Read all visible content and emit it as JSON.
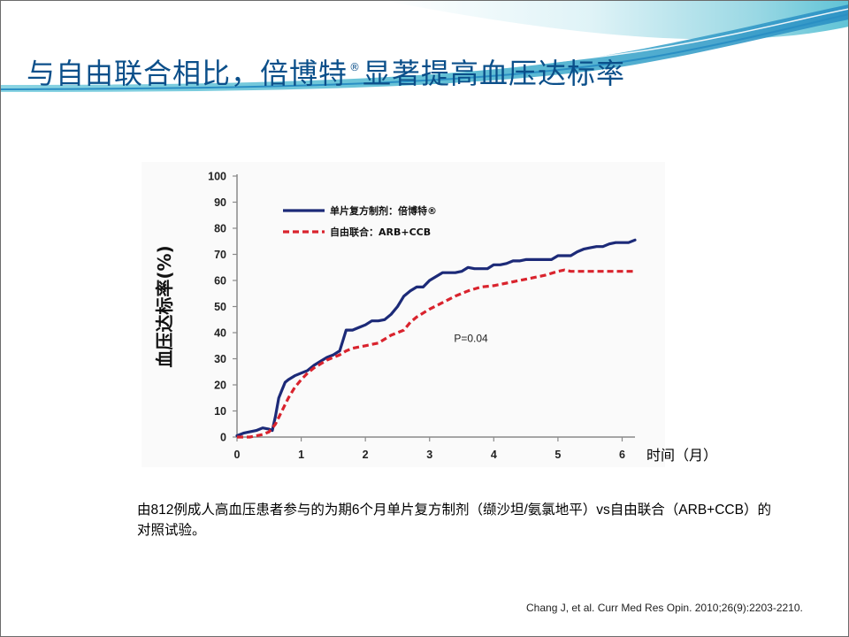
{
  "slide": {
    "title_main": "与自由联合相比，倍博特",
    "title_mark": "®",
    "title_tail": "显著提高血压达标率",
    "x_unit_label": "时间（月）",
    "caption": "由812例成人高血压患者参与的为期6个月单片复方制剂（缬沙坦/氨氯地平）vs自由联合（ARB+CCB）的对照试验。",
    "reference": "Chang J, et al. Curr Med Res Opin. 2010;26(9):2203-2210."
  },
  "colors": {
    "title": "#0b4f8a",
    "series_single_pill": "#1c2a78",
    "series_free_combo": "#d9232d",
    "header_teal": "#58c0d4",
    "header_blue": "#2a8fc4"
  },
  "chart_data": {
    "type": "line",
    "ylabel": "血压达标率(%)",
    "xlabel": "",
    "xlim": [
      0,
      6.2
    ],
    "ylim": [
      0,
      100
    ],
    "x_ticks": [
      "0",
      "1",
      "2",
      "3",
      "4",
      "5",
      "6"
    ],
    "y_ticks": [
      "0",
      "10",
      "20",
      "30",
      "40",
      "50",
      "60",
      "70",
      "80",
      "90",
      "100"
    ],
    "legend_position": "top-left",
    "grid": false,
    "annotation": "P=0.04",
    "series": [
      {
        "name": "单片复方制剂：倍博特®",
        "style": "solid",
        "x": [
          0,
          0.1,
          0.2,
          0.3,
          0.4,
          0.5,
          0.55,
          0.6,
          0.65,
          0.7,
          0.75,
          0.8,
          0.9,
          1.0,
          1.1,
          1.2,
          1.3,
          1.4,
          1.5,
          1.6,
          1.65,
          1.7,
          1.8,
          1.9,
          2.0,
          2.1,
          2.2,
          2.3,
          2.4,
          2.5,
          2.6,
          2.7,
          2.8,
          2.9,
          3.0,
          3.1,
          3.2,
          3.3,
          3.4,
          3.5,
          3.6,
          3.7,
          3.8,
          3.9,
          4.0,
          4.1,
          4.2,
          4.3,
          4.4,
          4.5,
          4.6,
          4.7,
          4.8,
          4.9,
          5.0,
          5.1,
          5.2,
          5.3,
          5.4,
          5.5,
          5.6,
          5.7,
          5.8,
          5.9,
          6.0,
          6.1,
          6.2
        ],
        "y": [
          0.5,
          1.5,
          2,
          2.5,
          3.5,
          3,
          2.5,
          8,
          15,
          18,
          21,
          22,
          23.5,
          24.5,
          25.5,
          27.5,
          29,
          30.5,
          31.5,
          33,
          37,
          41,
          41,
          42,
          43,
          44.5,
          44.5,
          45,
          47,
          50,
          54,
          56,
          57.5,
          57.5,
          60,
          61.5,
          63,
          63,
          63,
          63.5,
          65,
          64.5,
          64.5,
          64.5,
          66,
          66,
          66.5,
          67.5,
          67.5,
          68,
          68,
          68,
          68,
          68,
          69.5,
          69.5,
          69.5,
          71,
          72,
          72.5,
          73,
          73,
          74,
          74.5,
          74.5,
          74.5,
          75.5
        ]
      },
      {
        "name": "自由联合：ARB+CCB",
        "style": "dashed",
        "x": [
          0,
          0.2,
          0.4,
          0.5,
          0.6,
          0.7,
          0.8,
          0.9,
          1.0,
          1.1,
          1.2,
          1.3,
          1.4,
          1.5,
          1.6,
          1.7,
          1.8,
          1.9,
          2.0,
          2.1,
          2.2,
          2.3,
          2.4,
          2.5,
          2.6,
          2.7,
          2.8,
          3.0,
          3.2,
          3.4,
          3.6,
          3.8,
          4.0,
          4.2,
          4.4,
          4.6,
          4.8,
          5.0,
          5.1,
          5.2,
          5.4,
          5.6,
          5.8,
          6.0,
          6.2
        ],
        "y": [
          0,
          0,
          1,
          2,
          5,
          10,
          15,
          19,
          22,
          24.5,
          26.5,
          28,
          29.5,
          30.5,
          31.5,
          33,
          34,
          34.5,
          35,
          35.5,
          36,
          37.5,
          39,
          40,
          41,
          44,
          46,
          49,
          51.5,
          54,
          56,
          57.5,
          58,
          59,
          60,
          61,
          62,
          63.5,
          64,
          63.5,
          63.5,
          63.5,
          63.5,
          63.5,
          63.5
        ]
      }
    ]
  }
}
